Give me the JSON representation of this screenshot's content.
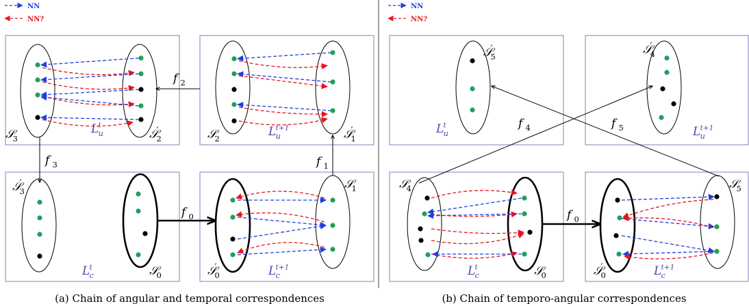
{
  "legend": {
    "nn_label": "NN",
    "nn_question_label": "NN?"
  },
  "colors": {
    "nn": "#1f3fe0",
    "nn_question": "#e8141c",
    "box_border": "#7f7fbf",
    "green_point": "#1fa05a",
    "black_point": "#000000",
    "plane_label": "#4a4aa8"
  },
  "panel_a": {
    "caption": "(a) Chain of angular and temporal correspondences",
    "labels": {
      "S3": {
        "base": "S",
        "sub": "3",
        "prime": ""
      },
      "S2prime": {
        "base": "S",
        "sub": "2",
        "prime": "′"
      },
      "S2": {
        "base": "S",
        "sub": "2",
        "prime": ""
      },
      "S1prime": {
        "base": "S",
        "sub": "1",
        "prime": "′"
      },
      "S3prime": {
        "base": "S",
        "sub": "3",
        "prime": "′"
      },
      "S0": {
        "base": "S",
        "sub": "0",
        "prime": ""
      },
      "S0prime": {
        "base": "S",
        "sub": "0",
        "prime": "′"
      },
      "S1": {
        "base": "S",
        "sub": "1",
        "prime": ""
      },
      "Lut": {
        "base": "L",
        "sub": "u",
        "sup": "t"
      },
      "Lut1": {
        "base": "L",
        "sub": "u",
        "sup": "t+1"
      },
      "Lct": {
        "base": "L",
        "sub": "c",
        "sup": "t"
      },
      "Lct1": {
        "base": "L",
        "sub": "c",
        "sup": "t+1"
      },
      "f0": {
        "base": "f",
        "sub": "0"
      },
      "f1": {
        "base": "f",
        "sub": "1"
      },
      "f2": {
        "base": "f",
        "sub": "2"
      },
      "f3": {
        "base": "f",
        "sub": "3"
      }
    }
  },
  "panel_b": {
    "caption": "(b) Chain of temporo-angular correspondences",
    "labels": {
      "S5prime": {
        "base": "S",
        "sub": "5",
        "prime": "′"
      },
      "S4prime": {
        "base": "S",
        "sub": "4",
        "prime": "′"
      },
      "S4": {
        "base": "S",
        "sub": "4",
        "prime": ""
      },
      "S0": {
        "base": "S",
        "sub": "0",
        "prime": ""
      },
      "S0prime": {
        "base": "S",
        "sub": "0",
        "prime": "′"
      },
      "S5": {
        "base": "S",
        "sub": "5",
        "prime": ""
      },
      "Lut": {
        "base": "L",
        "sub": "u",
        "sup": "t"
      },
      "Lut1": {
        "base": "L",
        "sub": "u",
        "sup": "t+1"
      },
      "Lct": {
        "base": "L",
        "sub": "c",
        "sup": "t"
      },
      "Lct1": {
        "base": "L",
        "sub": "c",
        "sup": "t+1"
      },
      "f0": {
        "base": "f",
        "sub": "0"
      },
      "f4": {
        "base": "f",
        "sub": "4"
      },
      "f5": {
        "base": "f",
        "sub": "5"
      }
    }
  }
}
